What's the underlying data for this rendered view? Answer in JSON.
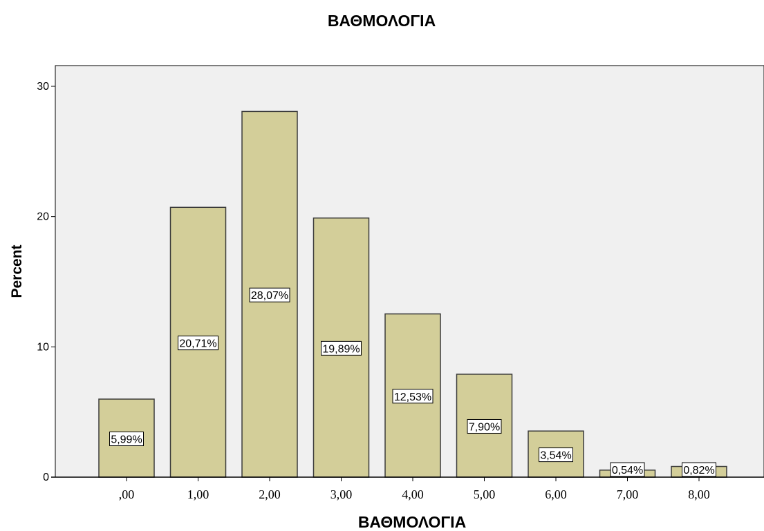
{
  "chart_data": {
    "type": "bar",
    "title": "ΒΑΘΜΟΛΟΓΙΑ",
    "xlabel": "ΒΑΘΜΟΛΟΓΙΑ",
    "ylabel": "Percent",
    "categories": [
      ",00",
      "1,00",
      "2,00",
      "3,00",
      "4,00",
      "5,00",
      "6,00",
      "7,00",
      "8,00"
    ],
    "values": [
      5.99,
      20.71,
      28.07,
      19.89,
      12.53,
      7.9,
      3.54,
      0.54,
      0.82
    ],
    "data_labels": [
      "5,99%",
      "20,71%",
      "28,07%",
      "19,89%",
      "12,53%",
      "7,90%",
      "3,54%",
      "0,54%",
      "0,82%"
    ],
    "yticks": [
      "0",
      "10",
      "20",
      "30"
    ],
    "ylim": [
      0,
      30
    ],
    "grid": false,
    "legend": "none",
    "colors": {
      "bar_fill": "#d3ce99",
      "bar_stroke": "#3a3a3a",
      "plot_background": "#f0f0f0",
      "label_box": "#ffffff"
    }
  }
}
